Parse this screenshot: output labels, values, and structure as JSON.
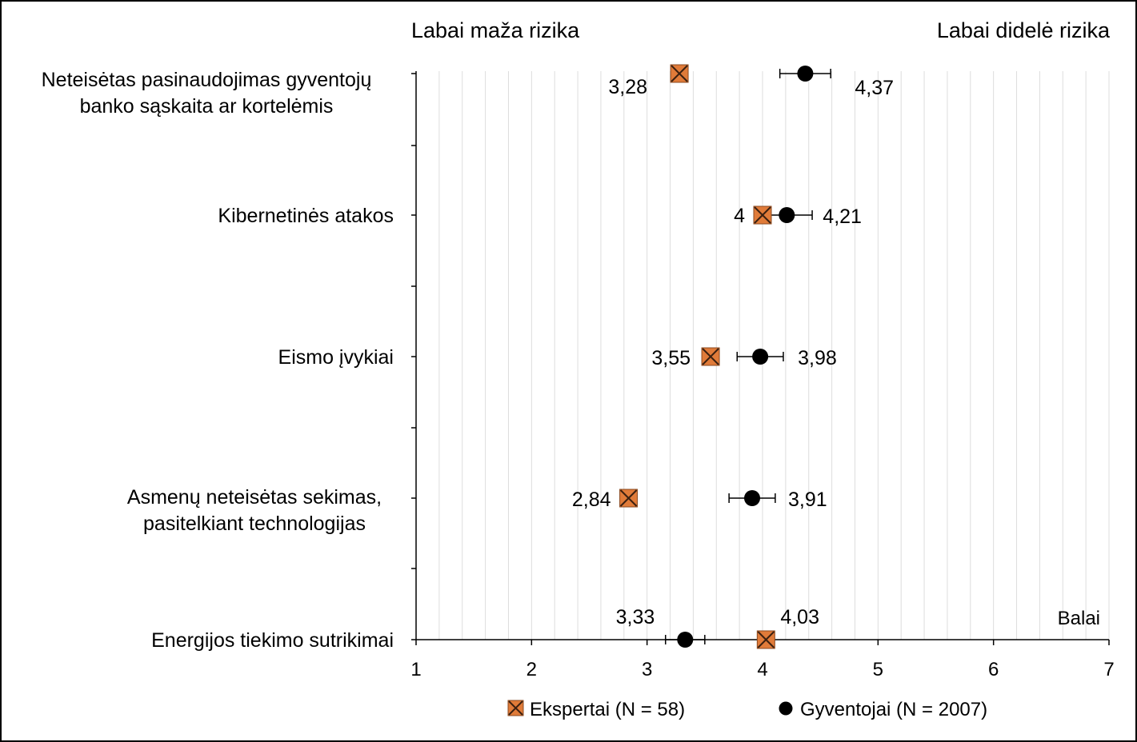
{
  "chart_data": {
    "type": "scatter",
    "left_header": "Labai maža rizika",
    "right_header": "Labai didelė rizika",
    "unit_label": "Balai",
    "xlim": [
      1,
      7
    ],
    "xticks": [
      "1",
      "2",
      "3",
      "4",
      "5",
      "6",
      "7"
    ],
    "grid": "vertical minor gridlines every 0.2",
    "legend_position": "bottom-center",
    "categories": [
      {
        "label_lines": [
          "Neteisėtas pasinaudojimas gyventojų",
          "banko sąskaita ar kortelėmis"
        ]
      },
      {
        "label_lines": [
          "Kibernetinės atakos"
        ]
      },
      {
        "label_lines": [
          "Eismo įvykiai"
        ]
      },
      {
        "label_lines": [
          "Asmenų neteisėtas sekimas,",
          "pasitelkiant technologijas"
        ]
      },
      {
        "label_lines": [
          "Energijos tiekimo sutrikimai"
        ]
      }
    ],
    "series": [
      {
        "name": "Ekspertai (N = 58)",
        "marker": "square-x",
        "color": "#E07B39",
        "values": [
          3.28,
          4.0,
          3.55,
          2.84,
          4.03
        ],
        "labels": [
          "3,28",
          "4",
          "3,55",
          "2,84",
          "4,03"
        ]
      },
      {
        "name": "Gyventojai (N = 2007)",
        "marker": "circle",
        "color": "#000000",
        "values": [
          4.37,
          4.21,
          3.98,
          3.91,
          3.33
        ],
        "labels": [
          "4,37",
          "4,21",
          "3,98",
          "3,91",
          "3,33"
        ],
        "error": [
          0.22,
          0.22,
          0.2,
          0.2,
          0.17
        ]
      }
    ]
  }
}
